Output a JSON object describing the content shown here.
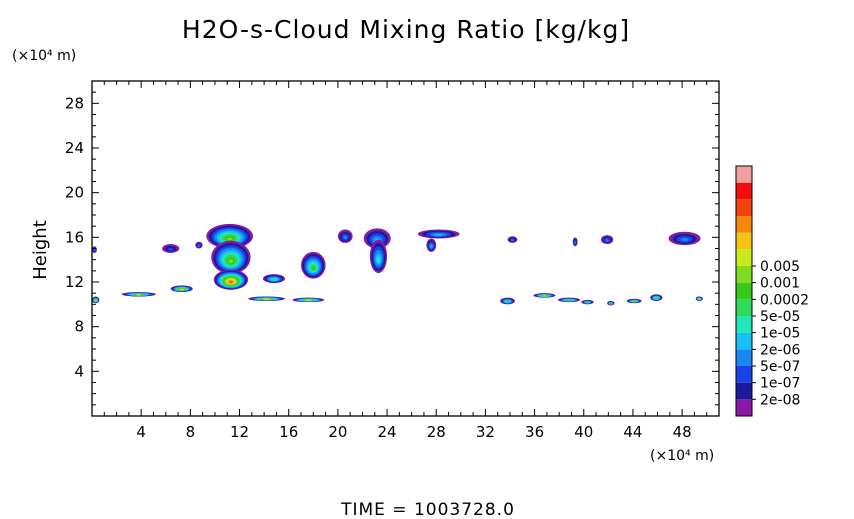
{
  "chart_data": {
    "type": "heatmap",
    "title": "H2O-s-Cloud Mixing Ratio [kg/kg]",
    "x_unit": "(×10⁴ m)",
    "y_unit": "(×10⁴ m)",
    "ylabel": "Height",
    "xlabel": "",
    "footer": "TIME = 1003728.0",
    "xlim": [
      0,
      51
    ],
    "ylim": [
      0,
      30
    ],
    "x_ticks": [
      4,
      8,
      12,
      16,
      20,
      24,
      28,
      32,
      36,
      40,
      44,
      48
    ],
    "y_ticks": [
      4,
      8,
      12,
      16,
      20,
      24,
      28
    ],
    "colorbar": {
      "colors": [
        "#8a1aa6",
        "#1b1b9c",
        "#1a44e6",
        "#1a86f2",
        "#16bff5",
        "#22e7b6",
        "#2fd95a",
        "#36c91c",
        "#7ddc1f",
        "#c6ea1e",
        "#f2c514",
        "#f58a0e",
        "#f2420c",
        "#f20e0e",
        "#f5a0a0"
      ],
      "labels": [
        "2e-08",
        "1e-07",
        "5e-07",
        "2e-06",
        "1e-05",
        "5e-05",
        "0.0002",
        "0.001",
        "0.005"
      ],
      "label_levels": [
        1,
        2,
        3,
        4,
        5,
        6,
        7,
        8,
        9
      ]
    },
    "features": [
      {
        "name": "anvil-10-12",
        "cx": 11.2,
        "cy": 16.1,
        "rx": 1.9,
        "ry": 1.1,
        "level": 8
      },
      {
        "name": "core-11",
        "cx": 11.3,
        "cy": 14.2,
        "rx": 1.6,
        "ry": 1.5,
        "level": 8
      },
      {
        "name": "low-cell-11",
        "cx": 11.3,
        "cy": 12.2,
        "rx": 1.4,
        "ry": 0.9,
        "level": 12
      },
      {
        "name": "cell-7",
        "cx": 6.4,
        "cy": 15.0,
        "rx": 0.7,
        "ry": 0.4,
        "level": 2
      },
      {
        "name": "cell-9",
        "cx": 8.7,
        "cy": 15.3,
        "rx": 0.3,
        "ry": 0.3,
        "level": 3
      },
      {
        "name": "cell-14",
        "cx": 14.8,
        "cy": 12.3,
        "rx": 0.9,
        "ry": 0.4,
        "level": 6
      },
      {
        "name": "cell-18",
        "cx": 18.0,
        "cy": 13.5,
        "rx": 1.0,
        "ry": 1.2,
        "level": 7
      },
      {
        "name": "cell-21",
        "cx": 20.6,
        "cy": 16.1,
        "rx": 0.6,
        "ry": 0.6,
        "level": 3
      },
      {
        "name": "cell-23",
        "cx": 23.2,
        "cy": 15.9,
        "rx": 1.1,
        "ry": 0.9,
        "level": 4
      },
      {
        "name": "column-23",
        "cx": 23.3,
        "cy": 14.3,
        "rx": 0.7,
        "ry": 1.5,
        "level": 5
      },
      {
        "name": "cell-28",
        "cx": 28.2,
        "cy": 16.3,
        "rx": 1.7,
        "ry": 0.4,
        "level": 4
      },
      {
        "name": "cell-27",
        "cx": 27.6,
        "cy": 15.3,
        "rx": 0.4,
        "ry": 0.6,
        "level": 4
      },
      {
        "name": "cell-34",
        "cx": 34.2,
        "cy": 15.8,
        "rx": 0.4,
        "ry": 0.3,
        "level": 3
      },
      {
        "name": "cell-39",
        "cx": 39.3,
        "cy": 15.6,
        "rx": 0.2,
        "ry": 0.4,
        "level": 3
      },
      {
        "name": "cell-42",
        "cx": 41.9,
        "cy": 15.8,
        "rx": 0.5,
        "ry": 0.4,
        "level": 3
      },
      {
        "name": "cell-48",
        "cx": 48.2,
        "cy": 15.9,
        "rx": 1.3,
        "ry": 0.6,
        "level": 3
      },
      {
        "name": "edge-0",
        "cx": 0.2,
        "cy": 14.9,
        "rx": 0.2,
        "ry": 0.3,
        "level": 3
      },
      {
        "name": "low-1",
        "cx": 0.3,
        "cy": 10.4,
        "rx": 0.3,
        "ry": 0.3,
        "level": 9
      },
      {
        "name": "low-3",
        "cx": 3.8,
        "cy": 10.9,
        "rx": 1.4,
        "ry": 0.2,
        "level": 9
      },
      {
        "name": "low-7",
        "cx": 7.3,
        "cy": 11.4,
        "rx": 0.9,
        "ry": 0.3,
        "level": 10
      },
      {
        "name": "low-14",
        "cx": 14.2,
        "cy": 10.5,
        "rx": 1.5,
        "ry": 0.2,
        "level": 10
      },
      {
        "name": "low-18",
        "cx": 17.6,
        "cy": 10.4,
        "rx": 1.3,
        "ry": 0.2,
        "level": 10
      },
      {
        "name": "low-34",
        "cx": 33.8,
        "cy": 10.3,
        "rx": 0.6,
        "ry": 0.3,
        "level": 7
      },
      {
        "name": "low-37",
        "cx": 36.8,
        "cy": 10.8,
        "rx": 0.9,
        "ry": 0.2,
        "level": 9
      },
      {
        "name": "low-39",
        "cx": 38.8,
        "cy": 10.4,
        "rx": 0.9,
        "ry": 0.2,
        "level": 8
      },
      {
        "name": "low-40",
        "cx": 40.3,
        "cy": 10.2,
        "rx": 0.5,
        "ry": 0.2,
        "level": 7
      },
      {
        "name": "low-42",
        "cx": 42.2,
        "cy": 10.1,
        "rx": 0.3,
        "ry": 0.2,
        "level": 7
      },
      {
        "name": "low-44",
        "cx": 44.1,
        "cy": 10.3,
        "rx": 0.6,
        "ry": 0.2,
        "level": 8
      },
      {
        "name": "low-46",
        "cx": 45.9,
        "cy": 10.6,
        "rx": 0.5,
        "ry": 0.3,
        "level": 8
      },
      {
        "name": "low-49",
        "cx": 49.4,
        "cy": 10.5,
        "rx": 0.3,
        "ry": 0.2,
        "level": 9
      }
    ]
  }
}
